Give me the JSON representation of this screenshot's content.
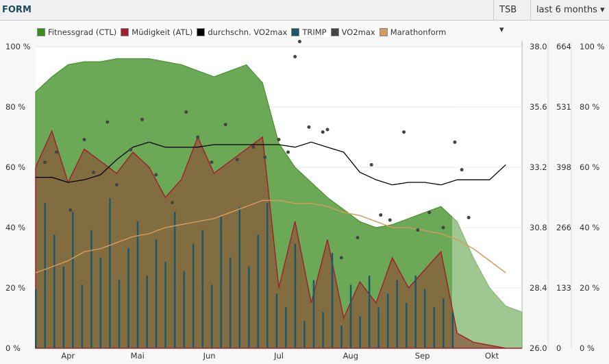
{
  "header": {
    "title": "FORM",
    "metric_select": "TSB",
    "range_select": "last 6 months"
  },
  "colors": {
    "ctl": "#3a8c1f",
    "atl": "#a3202e",
    "avg_vo2": "#000000",
    "trimp": "#1e5768",
    "vo2": "#444444",
    "marathon": "#d59a60"
  },
  "chart_data": {
    "type": "area",
    "legend": [
      {
        "name": "Fitnessgrad (CTL)",
        "color": "#3a8c1f"
      },
      {
        "name": "Müdigkeit (ATL)",
        "color": "#a3202e"
      },
      {
        "name": "durchschn. VO2max",
        "color": "#000000"
      },
      {
        "name": "TRIMP",
        "color": "#1e5768"
      },
      {
        "name": "VO2max",
        "color": "#444444"
      },
      {
        "name": "Marathonform",
        "color": "#d59a60"
      }
    ],
    "legend_placement": "top",
    "x_range": [
      "03-18",
      "10-14"
    ],
    "x_ticks": [
      {
        "date": "04-01",
        "label": "Apr"
      },
      {
        "date": "05-01",
        "label": "Mai"
      },
      {
        "date": "06-01",
        "label": "Jun"
      },
      {
        "date": "07-01",
        "label": "Jul"
      },
      {
        "date": "08-01",
        "label": "Aug"
      },
      {
        "date": "09-01",
        "label": "Sep"
      },
      {
        "date": "10-01",
        "label": "Okt"
      }
    ],
    "y_left_ticks": [
      "0 %",
      "20 %",
      "40 %",
      "60 %",
      "80 %",
      "100 %"
    ],
    "y_vo2_ticks": [
      "26.0",
      "28.4",
      "30.8",
      "33.2",
      "35.6",
      "38.0"
    ],
    "y_trimp_ticks": [
      "0",
      "133",
      "266",
      "398",
      "531",
      "664"
    ],
    "y_right_ticks": [
      "0 %",
      "20 %",
      "40 %",
      "60 %",
      "80 %",
      "100 %"
    ],
    "ylim_percent": [
      0,
      100
    ],
    "ylim_vo2": [
      26,
      38
    ],
    "ylim_trimp": [
      0,
      664
    ],
    "dates": [
      "03-18",
      "03-25",
      "04-01",
      "04-08",
      "04-15",
      "04-22",
      "04-29",
      "05-06",
      "05-13",
      "05-20",
      "05-27",
      "06-03",
      "06-10",
      "06-17",
      "06-24",
      "07-01",
      "07-08",
      "07-15",
      "07-22",
      "07-29",
      "08-05",
      "08-12",
      "08-19",
      "08-26",
      "09-02",
      "09-09",
      "09-16",
      "09-23",
      "09-30",
      "10-07",
      "10-14"
    ],
    "ctl": [
      85,
      90,
      94,
      95,
      95,
      96,
      96,
      96,
      95,
      94,
      92,
      90,
      92,
      94,
      88,
      68,
      60,
      55,
      50,
      46,
      42,
      40,
      41,
      43,
      45,
      47,
      42,
      30,
      20,
      14,
      12
    ],
    "atl": [
      60,
      72,
      55,
      66,
      62,
      58,
      65,
      60,
      50,
      56,
      70,
      58,
      62,
      66,
      70,
      20,
      42,
      15,
      36,
      10,
      22,
      15,
      30,
      20,
      26,
      32,
      5,
      2,
      1,
      0,
      0
    ],
    "avg_vo2": [
      32.8,
      32.8,
      32.6,
      32.7,
      32.9,
      33.5,
      34.0,
      34.2,
      34.0,
      34.0,
      34.0,
      34.1,
      34.1,
      34.1,
      34.1,
      34.1,
      34.0,
      34.2,
      34.0,
      33.8,
      33.0,
      32.7,
      32.5,
      32.6,
      32.6,
      32.5,
      32.7,
      32.7,
      32.7,
      33.3,
      null
    ],
    "marathon": [
      25,
      27,
      29,
      32,
      33,
      35,
      37,
      38,
      40,
      41,
      42,
      43,
      45,
      47,
      49,
      49,
      48,
      48,
      47,
      45,
      44,
      42,
      40,
      40,
      39,
      38,
      36,
      33,
      29,
      25,
      null
    ],
    "trimp": [
      [
        "03-18",
        130
      ],
      [
        "03-22",
        320
      ],
      [
        "03-26",
        250
      ],
      [
        "03-30",
        180
      ],
      [
        "04-03",
        300
      ],
      [
        "04-07",
        140
      ],
      [
        "04-11",
        260
      ],
      [
        "04-15",
        200
      ],
      [
        "04-19",
        330
      ],
      [
        "04-23",
        150
      ],
      [
        "04-27",
        220
      ],
      [
        "05-01",
        280
      ],
      [
        "05-05",
        160
      ],
      [
        "05-09",
        240
      ],
      [
        "05-13",
        190
      ],
      [
        "05-17",
        300
      ],
      [
        "05-21",
        170
      ],
      [
        "05-25",
        230
      ],
      [
        "05-29",
        260
      ],
      [
        "06-02",
        140
      ],
      [
        "06-06",
        290
      ],
      [
        "06-10",
        200
      ],
      [
        "06-14",
        310
      ],
      [
        "06-18",
        180
      ],
      [
        "06-22",
        250
      ],
      [
        "06-26",
        320
      ],
      [
        "06-30",
        120
      ],
      [
        "07-04",
        90
      ],
      [
        "07-08",
        230
      ],
      [
        "07-12",
        60
      ],
      [
        "07-16",
        150
      ],
      [
        "07-20",
        80
      ],
      [
        "07-24",
        210
      ],
      [
        "07-28",
        50
      ],
      [
        "08-01",
        140
      ],
      [
        "08-05",
        70
      ],
      [
        "08-09",
        160
      ],
      [
        "08-13",
        90
      ],
      [
        "08-17",
        120
      ],
      [
        "08-21",
        150
      ],
      [
        "08-25",
        100
      ],
      [
        "08-29",
        160
      ],
      [
        "09-02",
        130
      ],
      [
        "09-06",
        90
      ],
      [
        "09-10",
        110
      ],
      [
        "09-14",
        80
      ]
    ],
    "vo2": [
      [
        "03-22",
        33.4
      ],
      [
        "03-27",
        33.8
      ],
      [
        "04-02",
        31.5
      ],
      [
        "04-08",
        34.3
      ],
      [
        "04-12",
        33.0
      ],
      [
        "04-18",
        35.0
      ],
      [
        "04-22",
        32.5
      ],
      [
        "04-28",
        33.9
      ],
      [
        "05-03",
        35.1
      ],
      [
        "05-09",
        32.9
      ],
      [
        "05-16",
        31.8
      ],
      [
        "05-22",
        35.4
      ],
      [
        "05-27",
        34.4
      ],
      [
        "06-02",
        33.4
      ],
      [
        "06-08",
        34.9
      ],
      [
        "06-13",
        33.5
      ],
      [
        "06-20",
        34.0
      ],
      [
        "06-25",
        33.6
      ],
      [
        "07-01",
        34.3
      ],
      [
        "07-05",
        33.8
      ],
      [
        "07-08",
        37.6
      ],
      [
        "07-10",
        38.2
      ],
      [
        "07-14",
        34.8
      ],
      [
        "07-20",
        34.6
      ],
      [
        "07-22",
        34.7
      ],
      [
        "07-28",
        29.6
      ],
      [
        "08-04",
        30.4
      ],
      [
        "08-10",
        33.3
      ],
      [
        "08-14",
        31.3
      ],
      [
        "08-18",
        31.1
      ],
      [
        "08-24",
        34.6
      ],
      [
        "08-30",
        30.7
      ],
      [
        "09-04",
        31.4
      ],
      [
        "09-10",
        30.8
      ],
      [
        "09-15",
        34.2
      ],
      [
        "09-18",
        33.1
      ],
      [
        "09-21",
        31.2
      ]
    ]
  }
}
